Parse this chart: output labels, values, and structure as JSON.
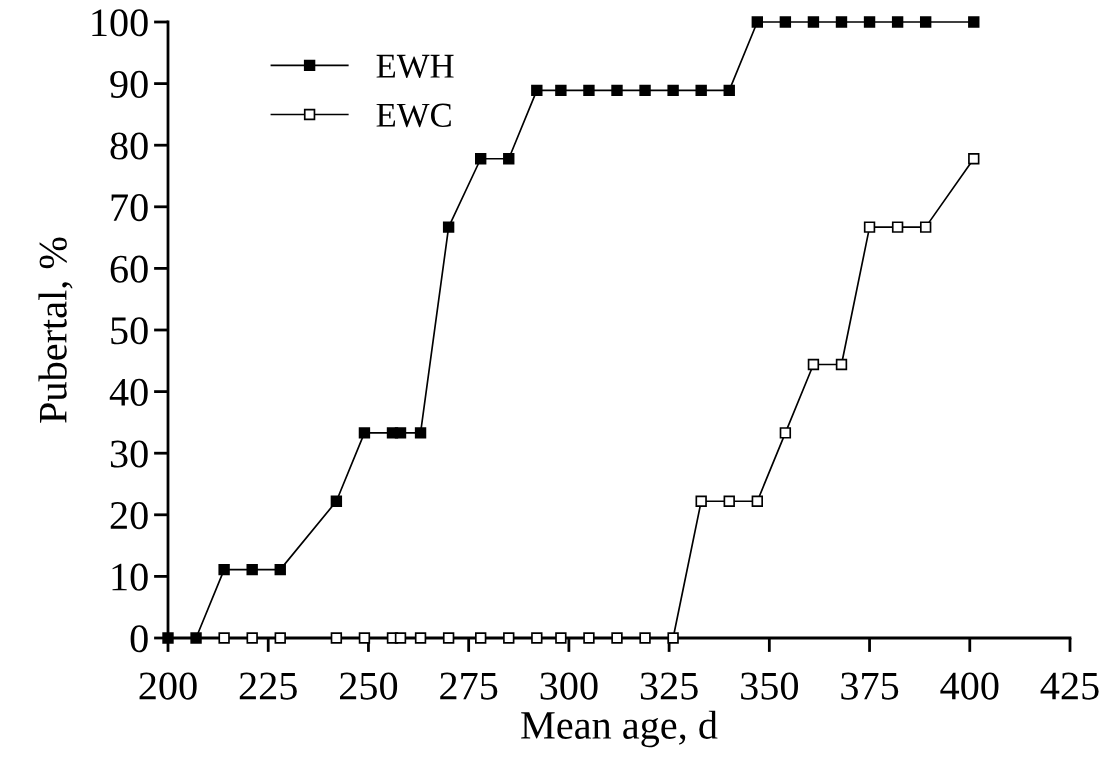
{
  "chart_data": {
    "type": "line",
    "xlabel": "Mean age, d",
    "ylabel": "Pubertal, %",
    "xlim": [
      200,
      425
    ],
    "xticks": [
      200,
      225,
      250,
      275,
      300,
      325,
      350,
      375,
      400,
      425
    ],
    "ylim": [
      0,
      100
    ],
    "yticks": [
      0,
      10,
      20,
      30,
      40,
      50,
      60,
      70,
      80,
      90,
      100
    ],
    "grid": false,
    "legend": "top left",
    "marker": "square",
    "line_style": "solid",
    "series": [
      {
        "name": "EWH",
        "color": "#000000",
        "x": [
          200,
          207,
          214,
          221,
          228,
          242,
          249,
          256,
          258,
          263,
          270,
          278,
          285,
          292,
          298,
          305,
          312,
          319,
          326,
          333,
          340,
          347,
          354,
          361,
          368,
          375,
          382,
          389,
          401
        ],
        "values": [
          0,
          0,
          11.1,
          11.1,
          11.1,
          22.2,
          33.3,
          33.3,
          33.3,
          33.3,
          66.7,
          77.8,
          77.8,
          88.9,
          88.9,
          88.9,
          88.9,
          88.9,
          88.9,
          88.9,
          88.9,
          100,
          100,
          100,
          100,
          100,
          100,
          100,
          100
        ]
      },
      {
        "name": "EWC",
        "color": "#000000",
        "x": [
          214,
          221,
          228,
          242,
          249,
          256,
          258,
          263,
          270,
          278,
          285,
          292,
          298,
          305,
          312,
          319,
          326,
          333,
          340,
          347,
          354,
          361,
          368,
          375,
          382,
          389,
          401
        ],
        "values": [
          0,
          0,
          0,
          0,
          0,
          0,
          0,
          0,
          0,
          0,
          0,
          0,
          0,
          0,
          0,
          0,
          0,
          22.2,
          22.2,
          22.2,
          33.3,
          44.4,
          44.4,
          66.7,
          66.7,
          66.7,
          77.8
        ]
      }
    ]
  }
}
